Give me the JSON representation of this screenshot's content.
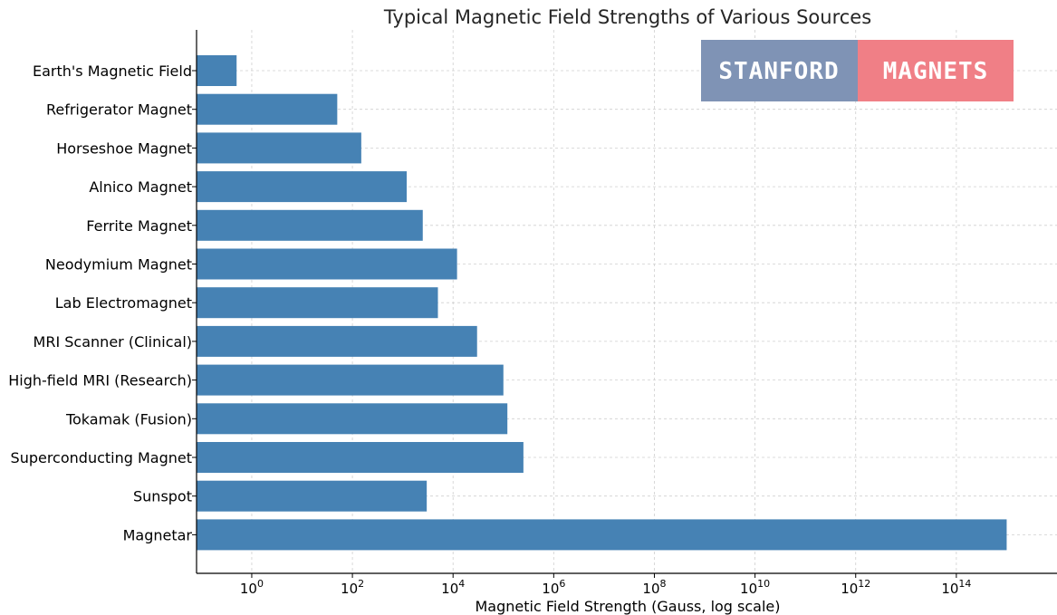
{
  "chart_data": {
    "type": "bar",
    "orientation": "horizontal",
    "title": "Typical Magnetic Field Strengths of Various Sources",
    "xlabel": "Magnetic Field Strength (Gauss, log scale)",
    "ylabel": "",
    "x_scale": "log",
    "xlim": [
      0.08,
      1e+16
    ],
    "x_ticks": [
      {
        "value": 1,
        "base": "10",
        "exp": "0"
      },
      {
        "value": 100,
        "base": "10",
        "exp": "2"
      },
      {
        "value": 10000,
        "base": "10",
        "exp": "4"
      },
      {
        "value": 1000000,
        "base": "10",
        "exp": "6"
      },
      {
        "value": 100000000,
        "base": "10",
        "exp": "8"
      },
      {
        "value": 10000000000,
        "base": "10",
        "exp": "10"
      },
      {
        "value": 1000000000000,
        "base": "10",
        "exp": "12"
      },
      {
        "value": 100000000000000,
        "base": "10",
        "exp": "14"
      }
    ],
    "grid": true,
    "bar_color": "#4682b4",
    "categories": [
      "Earth's Magnetic Field",
      "Refrigerator Magnet",
      "Horseshoe Magnet",
      "Alnico Magnet",
      "Ferrite Magnet",
      "Neodymium Magnet",
      "Lab Electromagnet",
      "MRI Scanner (Clinical)",
      "High-field MRI (Research)",
      "Tokamak (Fusion)",
      "Superconducting Magnet",
      "Sunspot",
      "Magnetar"
    ],
    "values": [
      0.5,
      50,
      150,
      1200,
      2500,
      12000,
      5000,
      30000,
      100000,
      120000,
      250000,
      3000,
      1000000000000000
    ]
  },
  "logo": {
    "left_text": "STANFORD",
    "right_text": "MAGNETS",
    "left_color": "#7f93b5",
    "right_color": "#f07f86"
  }
}
